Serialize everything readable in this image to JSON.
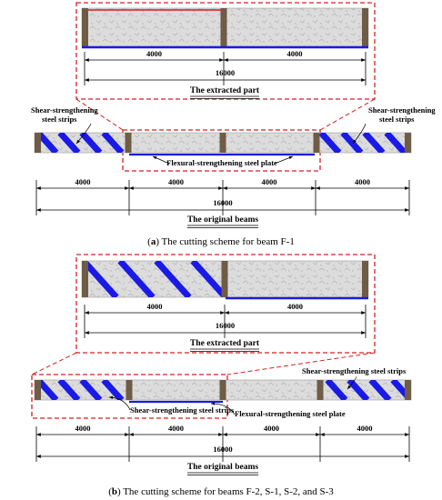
{
  "panel_a": {
    "extracted_part": {
      "segments": [
        4000,
        4000
      ],
      "total": 16000,
      "title": "The extracted part"
    },
    "original_beams": {
      "segments": [
        4000,
        4000,
        4000,
        4000
      ],
      "total": 16000,
      "title": "The original beams"
    },
    "labels": {
      "shear_left": [
        "Shear-strengthening",
        "steel strips"
      ],
      "shear_right": [
        "Shear-strengthening",
        "steel strips"
      ],
      "flexural": "Flexural-strengthening steel plate"
    },
    "caption": {
      "open": "(",
      "letter": "a",
      "text": ") The cutting scheme for beam F-1"
    }
  },
  "panel_b": {
    "extracted_part": {
      "segments": [
        4000,
        4000
      ],
      "total": 16000,
      "title": "The extracted part"
    },
    "original_beams": {
      "segments": [
        4000,
        4000,
        4000,
        4000
      ],
      "total": 16000,
      "title": "The original beams"
    },
    "labels": {
      "shear_lower": "Shear-strengthening steel strips",
      "shear_upper": "Shear-strengthening steel strips",
      "flexural": "Flexural-strengthening steel plate"
    },
    "caption": {
      "open": "(",
      "letter": "b",
      "text": ") The cutting scheme for beams F-2, S-1, S-2, and S-3"
    }
  }
}
